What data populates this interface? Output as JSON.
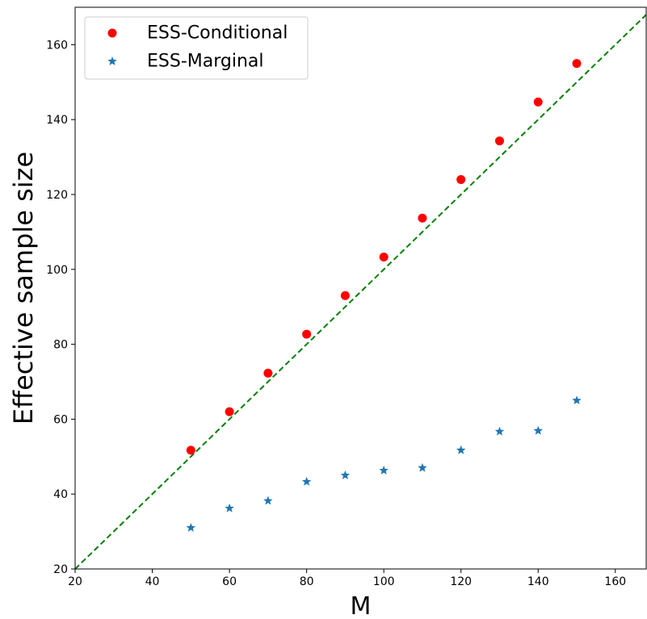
{
  "chart_data": {
    "type": "scatter",
    "title": "",
    "xlabel": "M",
    "ylabel": "Effective sample size",
    "xlim": [
      20,
      168
    ],
    "ylim": [
      20,
      170
    ],
    "xticks": [
      20,
      40,
      60,
      80,
      100,
      120,
      140,
      160
    ],
    "yticks": [
      20,
      40,
      60,
      80,
      100,
      120,
      140,
      160
    ],
    "grid": false,
    "legend_position": "top-left",
    "series": [
      {
        "name": "ESS-Conditional",
        "marker": "circle",
        "color": "#ff0000",
        "x": [
          50,
          60,
          70,
          80,
          90,
          100,
          110,
          120,
          130,
          140,
          150
        ],
        "y": [
          51.7,
          62.0,
          72.3,
          82.7,
          93.0,
          103.3,
          113.7,
          124.0,
          134.3,
          144.7,
          155.0
        ]
      },
      {
        "name": "ESS-Marginal",
        "marker": "star",
        "color": "#1f77b4",
        "x": [
          50,
          60,
          70,
          80,
          90,
          100,
          110,
          120,
          130,
          140,
          150
        ],
        "y": [
          31.0,
          36.2,
          38.2,
          43.3,
          45.0,
          46.3,
          47.0,
          51.7,
          56.7,
          56.9,
          65.0
        ]
      }
    ],
    "reference_line": {
      "type": "identity",
      "style": "dashed",
      "color": "#008000"
    }
  }
}
